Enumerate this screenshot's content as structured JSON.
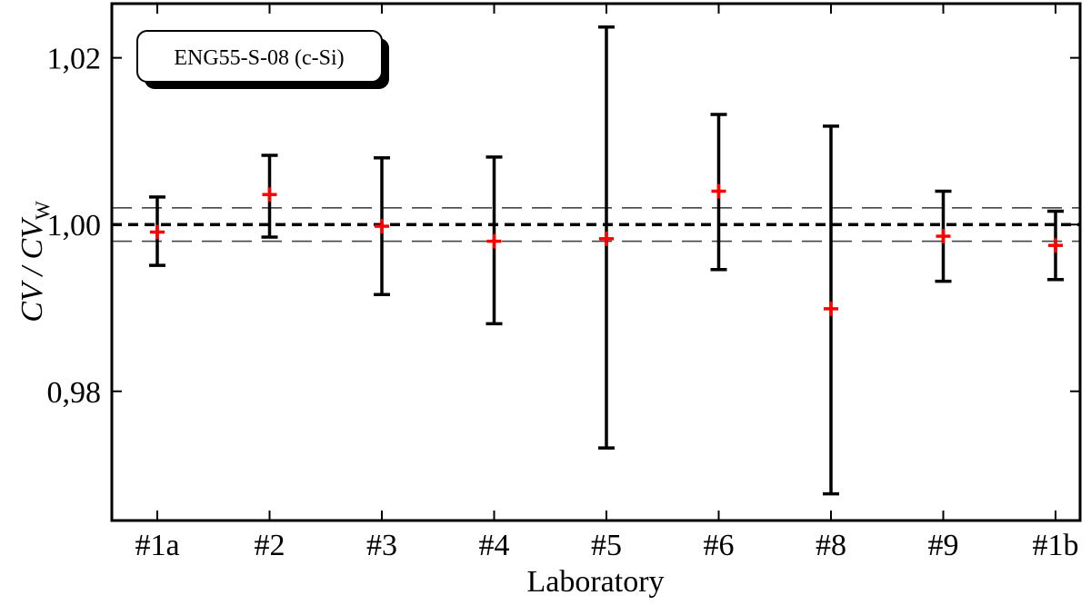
{
  "chart_data": {
    "type": "scatter",
    "title": "",
    "annotation": "ENG55-S-08 (c-Si)",
    "xlabel": "Laboratory",
    "ylabel": {
      "main": "CV / CV",
      "subscript": "W"
    },
    "categories": [
      "#1a",
      "#2",
      "#3",
      "#4",
      "#5",
      "#6",
      "#8",
      "#9",
      "#1b"
    ],
    "series": [
      {
        "values": [
          0.9991,
          1.0036,
          0.9998,
          0.998,
          0.9983,
          1.004,
          0.9899,
          0.9986,
          0.9975
        ],
        "error_low": [
          0.9951,
          0.9985,
          0.9916,
          0.9881,
          0.9732,
          0.9946,
          0.9677,
          0.9932,
          0.9934
        ],
        "error_high": [
          1.0033,
          1.0083,
          1.008,
          1.0081,
          1.0237,
          1.0132,
          1.0118,
          1.004,
          1.0016
        ],
        "marker": "plus",
        "marker_color": "#ff0000",
        "errorbar_color": "#000000"
      }
    ],
    "reference_lines": [
      {
        "y": 1.0,
        "style": "dashed-bold"
      },
      {
        "y": 1.002,
        "style": "dashed-thin"
      },
      {
        "y": 0.998,
        "style": "dashed-thin"
      }
    ],
    "ylim": [
      0.9645,
      1.0265
    ],
    "yticks": [
      0.98,
      1.0,
      1.02
    ],
    "ytick_labels": [
      "0,98",
      "1,00",
      "1,02"
    ],
    "grid": false,
    "legend": "top-left"
  }
}
